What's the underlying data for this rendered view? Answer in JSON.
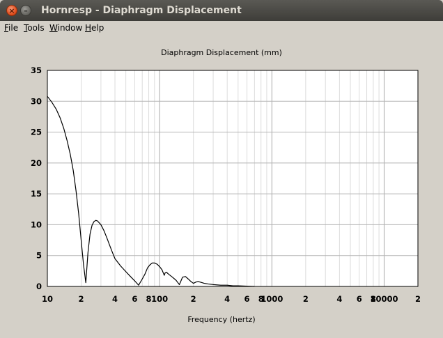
{
  "window": {
    "title": "Hornresp - Diaphragm Displacement"
  },
  "titlebar_buttons": {
    "close_icon": "close-icon",
    "minimize_icon": "minimize-icon"
  },
  "menu": {
    "items": [
      {
        "key": "F",
        "rest": "ile"
      },
      {
        "key": "T",
        "rest": "ools"
      },
      {
        "key": "W",
        "rest": "indow"
      },
      {
        "key": "H",
        "rest": "elp"
      }
    ]
  },
  "chart_data": {
    "type": "line",
    "title": "Diaphragm Displacement (mm)",
    "xlabel": "Frequency (hertz)",
    "ylabel": "",
    "x_scale": "log",
    "xlim": [
      10,
      20000
    ],
    "ylim": [
      0,
      35
    ],
    "grid": true,
    "legend": "none",
    "line_color": "#000000",
    "y_ticks": [
      0,
      5,
      10,
      15,
      20,
      25,
      30,
      35
    ],
    "y_tick_labels": [
      "0",
      "5",
      "10",
      "15",
      "20",
      "25",
      "30",
      "35"
    ],
    "x_ticks": [
      {
        "value": 10,
        "label": "10"
      },
      {
        "value": 20,
        "label": "2"
      },
      {
        "value": 40,
        "label": "4"
      },
      {
        "value": 60,
        "label": "6"
      },
      {
        "value": 80,
        "label": "8"
      },
      {
        "value": 100,
        "label": "100"
      },
      {
        "value": 200,
        "label": "2"
      },
      {
        "value": 400,
        "label": "4"
      },
      {
        "value": 600,
        "label": "6"
      },
      {
        "value": 800,
        "label": "8"
      },
      {
        "value": 1000,
        "label": "1000"
      },
      {
        "value": 2000,
        "label": "2"
      },
      {
        "value": 4000,
        "label": "4"
      },
      {
        "value": 6000,
        "label": "6"
      },
      {
        "value": 8000,
        "label": "8"
      },
      {
        "value": 10000,
        "label": "10000"
      },
      {
        "value": 20000,
        "label": "2"
      }
    ],
    "series": [
      {
        "x": [
          10,
          11,
          12,
          13,
          14,
          15,
          16,
          17,
          18,
          19,
          20,
          21,
          22,
          23,
          24,
          25,
          26,
          27,
          28,
          30,
          32,
          34,
          36,
          38,
          40,
          45,
          50,
          55,
          60,
          65,
          70,
          74,
          78,
          82,
          86,
          90,
          95,
          100,
          105,
          110,
          112,
          115,
          120,
          130,
          140,
          150,
          160,
          170,
          180,
          190,
          200,
          210,
          220,
          230,
          240,
          250,
          270,
          300,
          350,
          400,
          450,
          500,
          600,
          700
        ],
        "y": [
          30.8,
          29.8,
          28.7,
          27.3,
          25.6,
          23.6,
          21.4,
          18.8,
          15.5,
          11.8,
          7.5,
          3.5,
          0.6,
          5.5,
          8.5,
          9.9,
          10.5,
          10.7,
          10.6,
          10.0,
          9.0,
          7.8,
          6.6,
          5.5,
          4.5,
          3.3,
          2.4,
          1.6,
          0.9,
          0.2,
          1.2,
          2.0,
          3.0,
          3.5,
          3.8,
          3.8,
          3.6,
          3.2,
          2.7,
          1.8,
          2.2,
          2.3,
          2.0,
          1.5,
          1.0,
          0.3,
          1.5,
          1.6,
          1.2,
          0.8,
          0.5,
          0.7,
          0.8,
          0.7,
          0.6,
          0.5,
          0.4,
          0.3,
          0.2,
          0.2,
          0.1,
          0.1,
          0.05,
          0.0
        ]
      }
    ]
  }
}
